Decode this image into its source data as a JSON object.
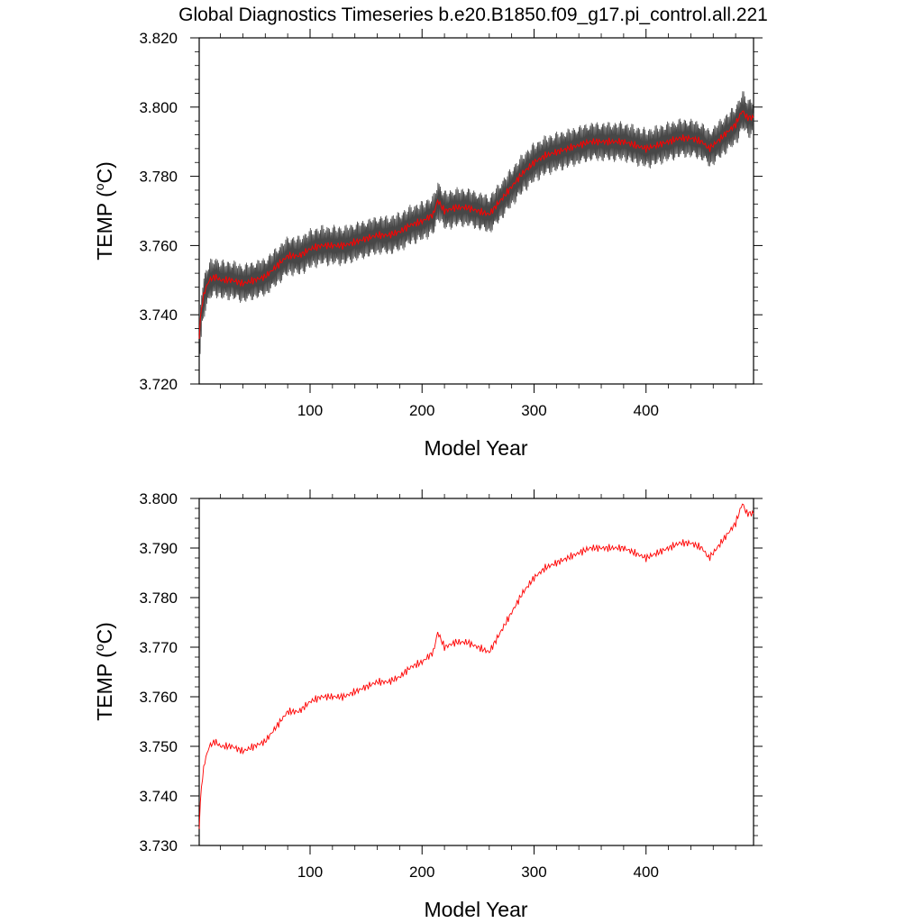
{
  "title": "Global Diagnostics Timeseries b.e20.B1850.f09_g17.pi_control.all.221",
  "chart_data": [
    {
      "type": "line",
      "xlabel": "Model Year",
      "ylabel_main": "TEMP (",
      "ylabel_sup": "o",
      "ylabel_tail": "C)",
      "xlim": [
        1,
        496
      ],
      "ylim": [
        3.72,
        3.82
      ],
      "x_ticks": [
        100,
        200,
        300,
        400
      ],
      "y_ticks": [
        "3.720",
        "3.740",
        "3.760",
        "3.780",
        "3.800",
        "3.820"
      ],
      "series": [
        {
          "color": "#333333",
          "style": "monthly band",
          "amplitude": 0.0045,
          "x": [
            1,
            3,
            6,
            10,
            15,
            20,
            30,
            40,
            50,
            60,
            70,
            80,
            90,
            100,
            110,
            120,
            130,
            140,
            150,
            160,
            170,
            180,
            190,
            200,
            210,
            214,
            220,
            230,
            240,
            250,
            260,
            270,
            280,
            290,
            300,
            310,
            320,
            330,
            340,
            350,
            360,
            370,
            380,
            390,
            400,
            410,
            420,
            430,
            440,
            450,
            456,
            460,
            470,
            480,
            486,
            490,
            496
          ],
          "values": [
            3.734,
            3.742,
            3.747,
            3.75,
            3.751,
            3.75,
            3.75,
            3.749,
            3.75,
            3.751,
            3.754,
            3.757,
            3.757,
            3.759,
            3.76,
            3.76,
            3.76,
            3.761,
            3.762,
            3.763,
            3.763,
            3.764,
            3.766,
            3.767,
            3.769,
            3.773,
            3.77,
            3.771,
            3.771,
            3.77,
            3.769,
            3.773,
            3.777,
            3.781,
            3.784,
            3.786,
            3.787,
            3.788,
            3.789,
            3.79,
            3.79,
            3.79,
            3.79,
            3.789,
            3.788,
            3.789,
            3.79,
            3.791,
            3.791,
            3.79,
            3.788,
            3.789,
            3.792,
            3.795,
            3.799,
            3.797,
            3.797
          ]
        },
        {
          "color": "#ff0000",
          "style": "annual mean",
          "x": [
            1,
            3,
            6,
            10,
            15,
            20,
            30,
            40,
            50,
            60,
            70,
            80,
            90,
            100,
            110,
            120,
            130,
            140,
            150,
            160,
            170,
            180,
            190,
            200,
            210,
            214,
            220,
            230,
            240,
            250,
            260,
            270,
            280,
            290,
            300,
            310,
            320,
            330,
            340,
            350,
            360,
            370,
            380,
            390,
            400,
            410,
            420,
            430,
            440,
            450,
            456,
            460,
            470,
            480,
            486,
            490,
            496
          ],
          "values": [
            3.734,
            3.742,
            3.747,
            3.75,
            3.751,
            3.75,
            3.75,
            3.749,
            3.75,
            3.751,
            3.754,
            3.757,
            3.757,
            3.759,
            3.76,
            3.76,
            3.76,
            3.761,
            3.762,
            3.763,
            3.763,
            3.764,
            3.766,
            3.767,
            3.769,
            3.773,
            3.77,
            3.771,
            3.771,
            3.77,
            3.769,
            3.773,
            3.777,
            3.781,
            3.784,
            3.786,
            3.787,
            3.788,
            3.789,
            3.79,
            3.79,
            3.79,
            3.79,
            3.789,
            3.788,
            3.789,
            3.79,
            3.791,
            3.791,
            3.79,
            3.788,
            3.789,
            3.792,
            3.795,
            3.799,
            3.797,
            3.797
          ]
        }
      ]
    },
    {
      "type": "line",
      "xlabel": "Model Year",
      "ylabel_main": "TEMP (",
      "ylabel_sup": "o",
      "ylabel_tail": "C)",
      "xlim": [
        1,
        496
      ],
      "ylim": [
        3.73,
        3.8
      ],
      "x_ticks": [
        100,
        200,
        300,
        400
      ],
      "y_ticks": [
        "3.730",
        "3.740",
        "3.750",
        "3.760",
        "3.770",
        "3.780",
        "3.790",
        "3.800"
      ],
      "series": [
        {
          "color": "#ff0000",
          "style": "annual mean",
          "x": [
            1,
            3,
            6,
            10,
            15,
            20,
            30,
            40,
            50,
            60,
            70,
            80,
            90,
            100,
            110,
            120,
            130,
            140,
            150,
            160,
            170,
            180,
            190,
            200,
            210,
            214,
            220,
            230,
            240,
            250,
            260,
            270,
            280,
            290,
            300,
            310,
            320,
            330,
            340,
            350,
            360,
            370,
            380,
            390,
            400,
            410,
            420,
            430,
            440,
            450,
            456,
            460,
            470,
            480,
            486,
            490,
            496
          ],
          "values": [
            3.734,
            3.742,
            3.747,
            3.75,
            3.751,
            3.75,
            3.75,
            3.749,
            3.75,
            3.751,
            3.754,
            3.757,
            3.757,
            3.759,
            3.76,
            3.76,
            3.76,
            3.761,
            3.762,
            3.763,
            3.763,
            3.764,
            3.766,
            3.767,
            3.769,
            3.773,
            3.77,
            3.771,
            3.771,
            3.77,
            3.769,
            3.773,
            3.777,
            3.781,
            3.784,
            3.786,
            3.787,
            3.788,
            3.789,
            3.79,
            3.79,
            3.79,
            3.79,
            3.789,
            3.788,
            3.789,
            3.79,
            3.791,
            3.791,
            3.79,
            3.788,
            3.789,
            3.792,
            3.795,
            3.799,
            3.797,
            3.797
          ]
        }
      ]
    }
  ]
}
